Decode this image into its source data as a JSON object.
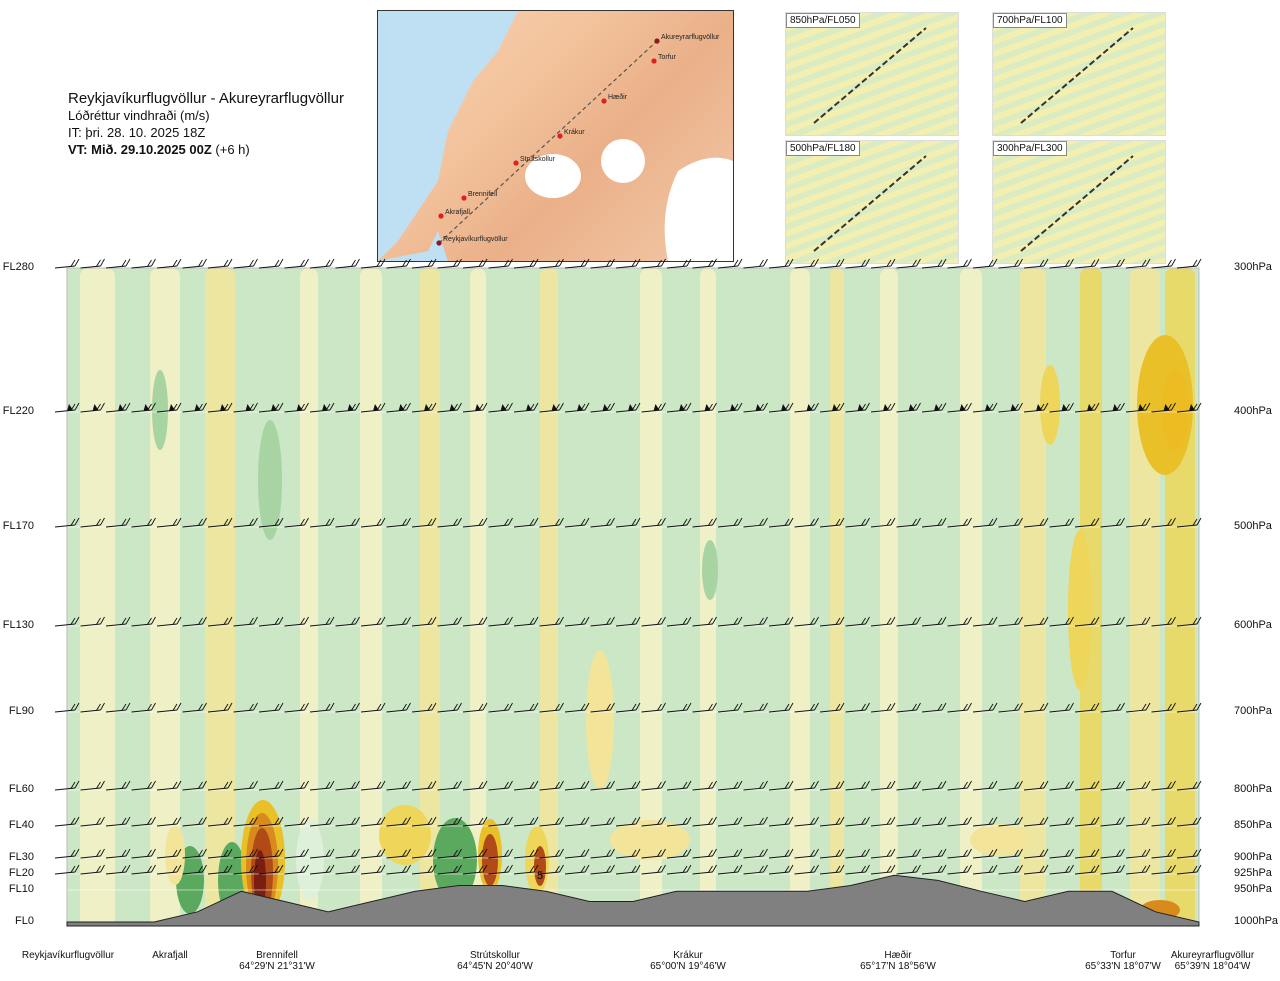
{
  "header": {
    "title": "Reykjavíkurflugvöllur - Akureyrarflugvöllur",
    "subtitle": "Lóðréttur vindhraði (m/s)",
    "issue_time": "IT: þri. 28. 10. 2025 18Z",
    "valid_time": "VT: Mið. 29.10.2025 00Z",
    "valid_offset": "(+6 h)"
  },
  "route_map": {
    "waypoints": [
      "Akureyrarflugvöllur",
      "Torfur",
      "Hæðir",
      "Krákur",
      "Strútskollur",
      "Brennifell",
      "Akrafjall",
      "Reykjavíkurflugvöllur"
    ]
  },
  "level_maps": [
    {
      "label": "850hPa/FL050"
    },
    {
      "label": "700hPa/FL100"
    },
    {
      "label": "500hPa/FL180"
    },
    {
      "label": "300hPa/FL300"
    }
  ],
  "chart_data": {
    "type": "heatmap",
    "title": "Reykjavíkurflugvöllur - Akureyrarflugvöllur",
    "variable": "Lóðréttur vindhraði (m/s)",
    "y_axis_left": [
      "FL280",
      "FL220",
      "FL170",
      "FL130",
      "FL90",
      "FL60",
      "FL40",
      "FL30",
      "FL20",
      "FL10",
      "FL0"
    ],
    "y_axis_right": [
      "300hPa",
      "400hPa",
      "500hPa",
      "600hPa",
      "700hPa",
      "800hPa",
      "850hPa",
      "900hPa",
      "925hPa",
      "950hPa",
      "1000hPa"
    ],
    "pressure_hpa": [
      300,
      400,
      500,
      600,
      700,
      800,
      850,
      900,
      925,
      950,
      1000
    ],
    "locations": [
      {
        "name": "Reykjavíkurflugvöllur",
        "coord": ""
      },
      {
        "name": "Akrafjall",
        "coord": ""
      },
      {
        "name": "Brennifell",
        "coord": "64°29'N 21°31'W"
      },
      {
        "name": "Strútskollur",
        "coord": "64°45'N 20°40'W"
      },
      {
        "name": "Krákur",
        "coord": "65°00'N 19°46'W"
      },
      {
        "name": "Hæðir",
        "coord": "65°17'N 18°56'W"
      },
      {
        "name": "Torfur",
        "coord": "65°33'N 18°07'W"
      },
      {
        "name": "Akureyrarflugvöllur",
        "coord": "65°39'N 18°04'W"
      }
    ],
    "contour_annotation": "5",
    "terrain_fl": [
      0,
      0,
      0,
      1,
      3,
      2,
      1,
      2,
      3,
      4,
      4,
      3,
      2,
      2,
      3,
      3,
      3,
      3,
      4,
      6,
      5,
      3,
      2,
      3,
      3,
      1,
      0
    ],
    "colormap": [
      "#cbe7c5",
      "#f7f1c7",
      "#f2e59a",
      "#edd65a",
      "#e9c027",
      "#d98a1d",
      "#b04a17",
      "#7a1e12",
      "#5aa95e",
      "#2f8f3f"
    ],
    "terrain_color": "#808080"
  }
}
